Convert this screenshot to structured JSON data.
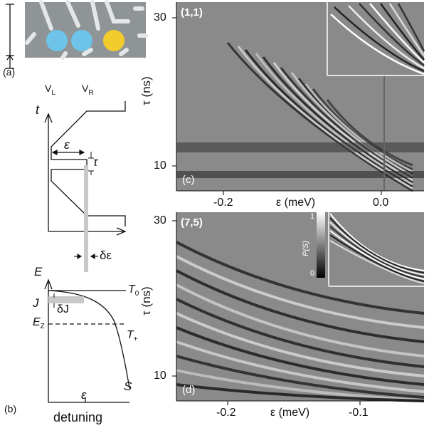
{
  "panel_a": {
    "label": "(a)",
    "gate_left": "V",
    "gate_left_sub": "L",
    "gate_right": "V",
    "gate_right_sub": "R",
    "dot_colors": [
      "#6ec4e8",
      "#6ec4e8",
      "#f2cc2d"
    ]
  },
  "panel_b": {
    "label": "(b)",
    "t_axis": "t",
    "eps": "ε",
    "tau": "τ",
    "delta_eps": "δε",
    "E_axis": "E",
    "T0": "T",
    "T0_sub": "0",
    "Tplus": "T",
    "Tplus_sub": "+",
    "J": "J",
    "delta_J": "δJ",
    "Ez": "E",
    "Ez_sub": "Z",
    "S": "S",
    "eps_tick": "ε",
    "xlabel": "detuning"
  },
  "panel_c": {
    "corner_label": "(1,1)",
    "panel_label": "(c)",
    "ylabel": "τ (ns)",
    "xlabel": "ε (meV)",
    "yticks": [
      "30",
      "10"
    ],
    "xticks": [
      "-0.2",
      "0.0"
    ]
  },
  "panel_d": {
    "corner_label": "(7,5)",
    "panel_label": "(d)",
    "ylabel": "τ (ns)",
    "xlabel": "ε (meV)",
    "yticks": [
      "30",
      "10"
    ],
    "xticks": [
      "-0.2",
      "-0.1"
    ],
    "inset_ylabel": "P(S)",
    "inset_ticks": [
      "1",
      "0"
    ]
  }
}
